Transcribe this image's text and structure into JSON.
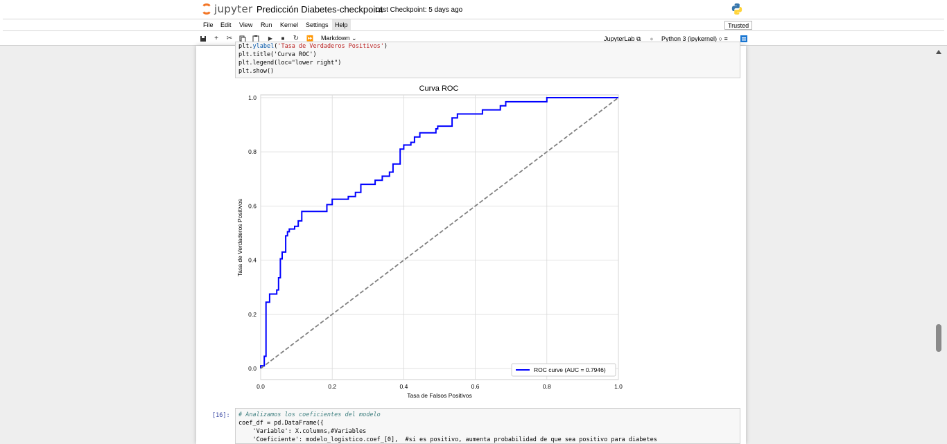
{
  "app": {
    "logo_text": "jupyter",
    "notebook_name": "Predicción Diabetes-checkpoint",
    "checkpoint": "Last Checkpoint: 5 days ago",
    "trusted": "Trusted"
  },
  "menu": [
    "File",
    "Edit",
    "View",
    "Run",
    "Kernel",
    "Settings",
    "Help"
  ],
  "toolbar": {
    "cell_type": "Markdown",
    "jupyterlab": "JupyterLab",
    "kernel": "Python 3 (ipykernel)"
  },
  "cells": {
    "top_code": [
      "plt.ylabel('Tasa de Verdaderos Positivos')",
      "plt.title('Curva ROC')",
      "plt.legend(loc=\"lower right\")",
      "plt.show()"
    ],
    "bottom_prompt": "[16]:",
    "bottom_code": [
      "# Analizamos los coeficientes del modelo",
      "coef_df = pd.DataFrame({",
      "    'Variable': X.columns,#Variables",
      "    'Coeficiente': modelo_logistico.coef_[0],  #si es positivo, aumenta probabilidad de que sea positivo para diabetes"
    ]
  },
  "chart_data": {
    "type": "line",
    "title": "Curva ROC",
    "xlabel": "Tasa de Falsos Positivos",
    "ylabel": "Tasa de Verdaderos Positivos",
    "xlim": [
      0,
      1
    ],
    "ylim": [
      0,
      1
    ],
    "xticks": [
      "0.0",
      "0.2",
      "0.4",
      "0.6",
      "0.8",
      "1.0"
    ],
    "yticks": [
      "0.0",
      "0.2",
      "0.4",
      "0.6",
      "0.8",
      "1.0"
    ],
    "grid": true,
    "legend_position": "lower-right",
    "series": [
      {
        "name": "ROC curve (AUC = 0.7946)",
        "color": "#0000ff",
        "style": "solid",
        "x": [
          0.0,
          0.0,
          0.01,
          0.01,
          0.015,
          0.015,
          0.025,
          0.025,
          0.045,
          0.045,
          0.05,
          0.05,
          0.055,
          0.055,
          0.06,
          0.06,
          0.07,
          0.07,
          0.075,
          0.075,
          0.08,
          0.08,
          0.095,
          0.095,
          0.105,
          0.105,
          0.115,
          0.115,
          0.125,
          0.125,
          0.185,
          0.185,
          0.2,
          0.2,
          0.245,
          0.245,
          0.265,
          0.265,
          0.28,
          0.28,
          0.32,
          0.32,
          0.34,
          0.34,
          0.36,
          0.36,
          0.37,
          0.37,
          0.39,
          0.39,
          0.4,
          0.4,
          0.42,
          0.42,
          0.43,
          0.43,
          0.445,
          0.445,
          0.49,
          0.49,
          0.495,
          0.495,
          0.535,
          0.535,
          0.55,
          0.55,
          0.555,
          0.555,
          0.62,
          0.62,
          0.67,
          0.67,
          0.685,
          0.685,
          0.8,
          0.8,
          1.0
        ],
        "y": [
          0.0,
          0.01,
          0.01,
          0.045,
          0.045,
          0.245,
          0.245,
          0.275,
          0.275,
          0.29,
          0.29,
          0.335,
          0.335,
          0.405,
          0.405,
          0.43,
          0.43,
          0.49,
          0.49,
          0.505,
          0.505,
          0.515,
          0.515,
          0.525,
          0.525,
          0.545,
          0.545,
          0.58,
          0.58,
          0.58,
          0.58,
          0.605,
          0.605,
          0.625,
          0.625,
          0.635,
          0.635,
          0.65,
          0.65,
          0.68,
          0.68,
          0.695,
          0.695,
          0.71,
          0.71,
          0.725,
          0.725,
          0.755,
          0.755,
          0.81,
          0.81,
          0.825,
          0.825,
          0.835,
          0.835,
          0.855,
          0.855,
          0.87,
          0.87,
          0.885,
          0.885,
          0.895,
          0.895,
          0.925,
          0.925,
          0.94,
          0.94,
          0.94,
          0.94,
          0.955,
          0.955,
          0.97,
          0.97,
          0.985,
          0.985,
          1.0,
          1.0
        ]
      },
      {
        "color": "#808080",
        "style": "dashed",
        "x": [
          0.0,
          1.0
        ],
        "y": [
          0.0,
          1.0
        ]
      }
    ]
  }
}
